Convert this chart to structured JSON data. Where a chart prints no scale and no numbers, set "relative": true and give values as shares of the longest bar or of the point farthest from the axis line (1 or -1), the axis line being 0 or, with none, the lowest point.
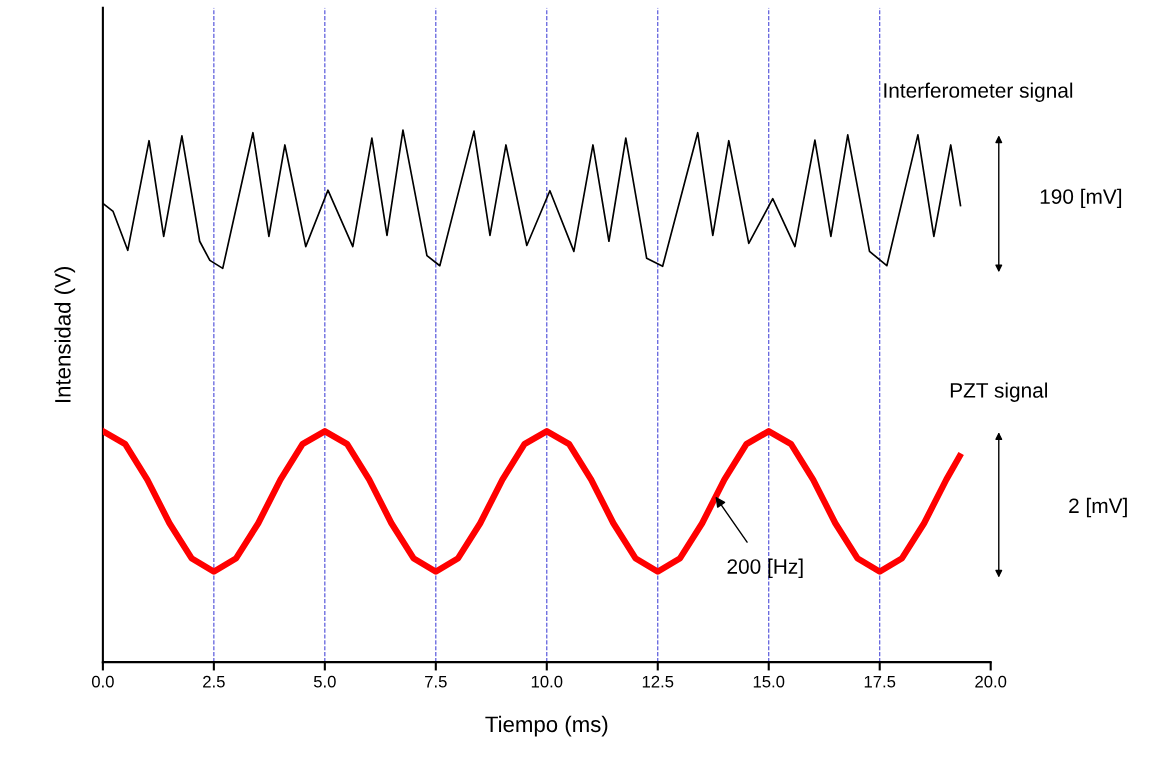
{
  "chart_data": {
    "type": "line",
    "relative": true,
    "xlabel": "Tiempo (ms)",
    "ylabel": "Intensidad (V)",
    "xlim": [
      0,
      20
    ],
    "xticks": [
      {
        "value": 0,
        "label": "0.0"
      },
      {
        "value": 2.5,
        "label": "2.5"
      },
      {
        "value": 5,
        "label": "5.0"
      },
      {
        "value": 7.5,
        "label": "7.5"
      },
      {
        "value": 10,
        "label": "10.0"
      },
      {
        "value": 12.5,
        "label": "12.5"
      },
      {
        "value": 15,
        "label": "15.0"
      },
      {
        "value": 17.5,
        "label": "17.5"
      },
      {
        "value": 20,
        "label": "20.0"
      }
    ],
    "grid": false,
    "marker": "none",
    "line_style": "solid",
    "series": [
      {
        "name": "Interferometer signal",
        "color": "#000000",
        "x": [
          0,
          0.23,
          0.56,
          1.04,
          1.37,
          1.78,
          2.18,
          2.41,
          2.7,
          3.38,
          3.74,
          4.1,
          4.57,
          5.07,
          5.63,
          6.06,
          6.4,
          6.76,
          7.3,
          7.59,
          8.36,
          8.72,
          9.08,
          9.55,
          10.07,
          10.61,
          11.04,
          11.4,
          11.78,
          12.25,
          12.61,
          13.4,
          13.74,
          14.1,
          14.55,
          15.09,
          15.59,
          16.04,
          16.4,
          16.78,
          17.27,
          17.66,
          18.36,
          18.72,
          19.1,
          19.32
        ],
        "values": [
          0.862,
          0.847,
          0.774,
          0.98,
          0.8,
          0.989,
          0.791,
          0.755,
          0.74,
          0.995,
          0.8,
          0.972,
          0.781,
          0.887,
          0.781,
          0.985,
          0.802,
          1,
          0.764,
          0.745,
          0.998,
          0.802,
          0.972,
          0.783,
          0.886,
          0.772,
          0.972,
          0.791,
          0.985,
          0.759,
          0.744,
          0.995,
          0.802,
          0.98,
          0.787,
          0.871,
          0.781,
          0.981,
          0.8,
          0.991,
          0.772,
          0.745,
          0.991,
          0.8,
          0.972,
          0.858
        ]
      },
      {
        "name": "PZT signal",
        "color": "#ff0000",
        "x": [
          0,
          0.5,
          1,
          1.5,
          2,
          2.5,
          3,
          3.5,
          4,
          4.5,
          5,
          5.5,
          6,
          6.5,
          7,
          7.5,
          8,
          8.5,
          9,
          9.5,
          10,
          10.5,
          11,
          11.5,
          12,
          12.5,
          13,
          13.5,
          14,
          14.5,
          15,
          15.5,
          16,
          16.5,
          17,
          17.5,
          18,
          18.5,
          19,
          19.3
        ],
        "values": [
          0.434,
          0.41,
          0.343,
          0.261,
          0.195,
          0.17,
          0.195,
          0.261,
          0.343,
          0.41,
          0.434,
          0.41,
          0.343,
          0.261,
          0.195,
          0.17,
          0.195,
          0.261,
          0.343,
          0.41,
          0.434,
          0.41,
          0.343,
          0.261,
          0.195,
          0.17,
          0.195,
          0.261,
          0.343,
          0.41,
          0.434,
          0.41,
          0.343,
          0.261,
          0.195,
          0.17,
          0.195,
          0.261,
          0.343,
          0.387
        ]
      }
    ],
    "ref_lines": [
      {
        "axis": "x",
        "value": 2.5,
        "color": "#4a4ad8",
        "line_style": "dashed"
      },
      {
        "axis": "x",
        "value": 5,
        "color": "#4a4ad8",
        "line_style": "dashed"
      },
      {
        "axis": "x",
        "value": 7.5,
        "color": "#4a4ad8",
        "line_style": "dashed"
      },
      {
        "axis": "x",
        "value": 10,
        "color": "#4a4ad8",
        "line_style": "dashed"
      },
      {
        "axis": "x",
        "value": 12.5,
        "color": "#4a4ad8",
        "line_style": "dashed"
      },
      {
        "axis": "x",
        "value": 15,
        "color": "#4a4ad8",
        "line_style": "dashed"
      },
      {
        "axis": "x",
        "value": 17.5,
        "color": "#4a4ad8",
        "line_style": "dashed"
      }
    ],
    "annotations": [
      "190 [mV]",
      "2 [mV]",
      {
        "text": "200 [Hz]",
        "x": 13.8,
        "y": 0.311
      }
    ]
  }
}
